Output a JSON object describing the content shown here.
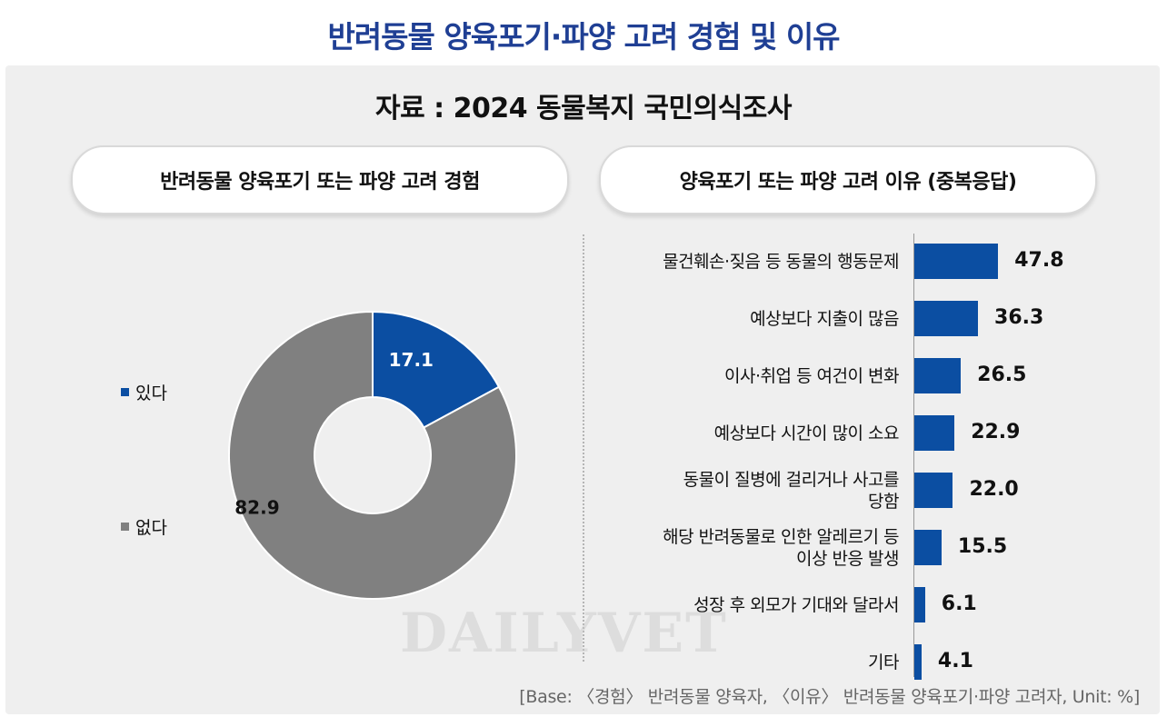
{
  "title": "반려동물 양육포기·파양 고려 경험 및 이유",
  "source": "자료 : 2024 동물복지  국민의식조사",
  "left_header": "반려동물 양육포기 또는 파양 고려 경험",
  "right_header": "양육포기 또는 파양 고려 이유 (중복응답)",
  "watermark": "DAILYVET",
  "footnote": "[Base: 〈경험〉 반려동물  양육자, 〈이유〉 반려동물  양육포기·파양  고려자,  Unit:  %]",
  "colors": {
    "title": "#1f3f94",
    "accent": "#0b4ea2",
    "gray": "#808080",
    "panel": "#efefef"
  },
  "chart_data": [
    {
      "type": "pie",
      "title": "반려동물 양육포기 또는 파양 고려 경험",
      "legend_position": "left",
      "categories": [
        "있다",
        "없다"
      ],
      "values": [
        17.1,
        82.9
      ],
      "value_labels": [
        "17.1",
        "82.9"
      ],
      "colors": [
        "#0b4ea2",
        "#808080"
      ]
    },
    {
      "type": "bar",
      "orientation": "horizontal",
      "title": "양육포기 또는 파양 고려 이유 (중복응답)",
      "categories": [
        [
          "물건훼손·짖음 등 동물의 행동문제"
        ],
        [
          "예상보다 지출이 많음"
        ],
        [
          "이사·취업 등 여건이 변화"
        ],
        [
          "예상보다 시간이 많이 소요"
        ],
        [
          "동물이 질병에 걸리거나 사고를",
          "당함"
        ],
        [
          "해당 반려동물로 인한 알레르기 등",
          "이상 반응 발생"
        ],
        [
          "성장 후 외모가 기대와 달라서"
        ],
        [
          "기타"
        ]
      ],
      "values": [
        47.8,
        36.3,
        26.5,
        22.9,
        22.0,
        15.5,
        6.1,
        4.1
      ],
      "value_labels": [
        "47.8",
        "36.3",
        "26.5",
        "22.9",
        "22.0",
        "15.5",
        "6.1",
        "4.1"
      ],
      "color": "#0b4ea2",
      "grid": false
    }
  ]
}
